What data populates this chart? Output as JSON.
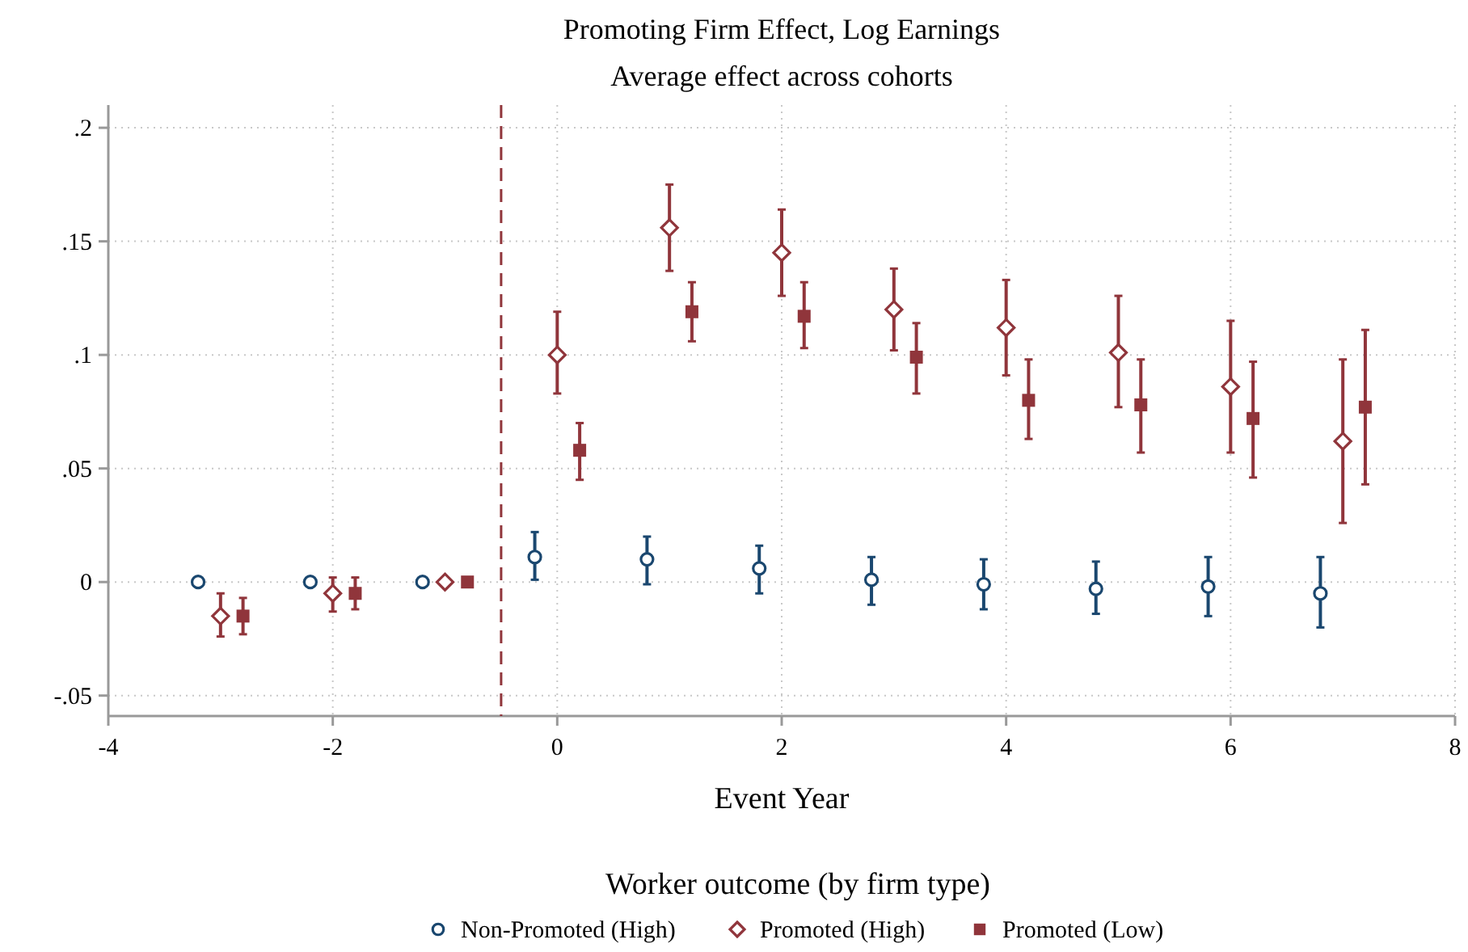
{
  "chart_data": {
    "type": "scatter",
    "title": "Promoting Firm Effect, Log Earnings",
    "subtitle": "Average effect across cohorts",
    "xlabel": "Event Year",
    "legend_title": "Worker outcome (by firm type)",
    "legend": "bottom",
    "grid": true,
    "line_style": "dotted",
    "xlim": [
      -4,
      8
    ],
    "xticks": [
      -4,
      -2,
      0,
      2,
      4,
      6,
      8
    ],
    "ylim": [
      -0.059,
      0.21
    ],
    "yticks": [
      {
        "value": -0.05,
        "label": "-.05"
      },
      0,
      {
        "value": 0.05,
        "label": ".05"
      },
      {
        "value": 0.1,
        "label": ".1"
      },
      {
        "value": 0.15,
        "label": ".15"
      },
      {
        "value": 0.2,
        "label": ".2"
      }
    ],
    "ref_lines": [
      {
        "axis": "x",
        "value": -0.5,
        "color": "#90353b",
        "line_style": "dashed"
      }
    ],
    "series": [
      {
        "name": "Non-Promoted (High)",
        "color": "#1a476f",
        "marker": "circle",
        "x": [
          -3.2,
          -2.2,
          -1.2,
          -0.2,
          0.8,
          1.8,
          2.8,
          3.8,
          4.8,
          5.8,
          6.8
        ],
        "values": [
          0,
          0,
          0,
          0.011,
          0.01,
          0.006,
          0.001,
          -0.001,
          -0.003,
          -0.002,
          -0.005
        ],
        "errors": [
          [
            -0.002,
            0.002
          ],
          [
            -0.001,
            0.001
          ],
          [
            -0.001,
            0.001
          ],
          [
            0.001,
            0.022
          ],
          [
            -0.001,
            0.02
          ],
          [
            -0.005,
            0.016
          ],
          [
            -0.01,
            0.011
          ],
          [
            -0.012,
            0.01
          ],
          [
            -0.014,
            0.009
          ],
          [
            -0.015,
            0.011
          ],
          [
            -0.02,
            0.011
          ]
        ]
      },
      {
        "name": "Promoted (High)",
        "color": "#90353b",
        "marker": "diamond",
        "x": [
          -3,
          -2,
          -1,
          0,
          1,
          2,
          3,
          4,
          5,
          6,
          7
        ],
        "values": [
          -0.015,
          -0.005,
          0,
          0.1,
          0.156,
          0.145,
          0.12,
          0.112,
          0.101,
          0.086,
          0.062
        ],
        "errors": [
          [
            -0.024,
            -0.005
          ],
          [
            -0.013,
            0.002
          ],
          null,
          [
            0.083,
            0.119
          ],
          [
            0.137,
            0.175
          ],
          [
            0.126,
            0.164
          ],
          [
            0.102,
            0.138
          ],
          [
            0.091,
            0.133
          ],
          [
            0.077,
            0.126
          ],
          [
            0.057,
            0.115
          ],
          [
            0.026,
            0.098
          ]
        ]
      },
      {
        "name": "Promoted (Low)",
        "color": "#90353b",
        "marker": "square",
        "x": [
          -2.8,
          -1.8,
          -0.8,
          0.2,
          1.2,
          2.2,
          3.2,
          4.2,
          5.2,
          6.2,
          7.2
        ],
        "values": [
          -0.015,
          -0.005,
          0,
          0.058,
          0.119,
          0.117,
          0.099,
          0.08,
          0.078,
          0.072,
          0.077
        ],
        "errors": [
          [
            -0.023,
            -0.007
          ],
          [
            -0.012,
            0.002
          ],
          null,
          [
            0.045,
            0.07
          ],
          [
            0.106,
            0.132
          ],
          [
            0.103,
            0.132
          ],
          [
            0.083,
            0.114
          ],
          [
            0.063,
            0.098
          ],
          [
            0.057,
            0.098
          ],
          [
            0.046,
            0.097
          ],
          [
            0.043,
            0.111
          ]
        ]
      }
    ]
  }
}
